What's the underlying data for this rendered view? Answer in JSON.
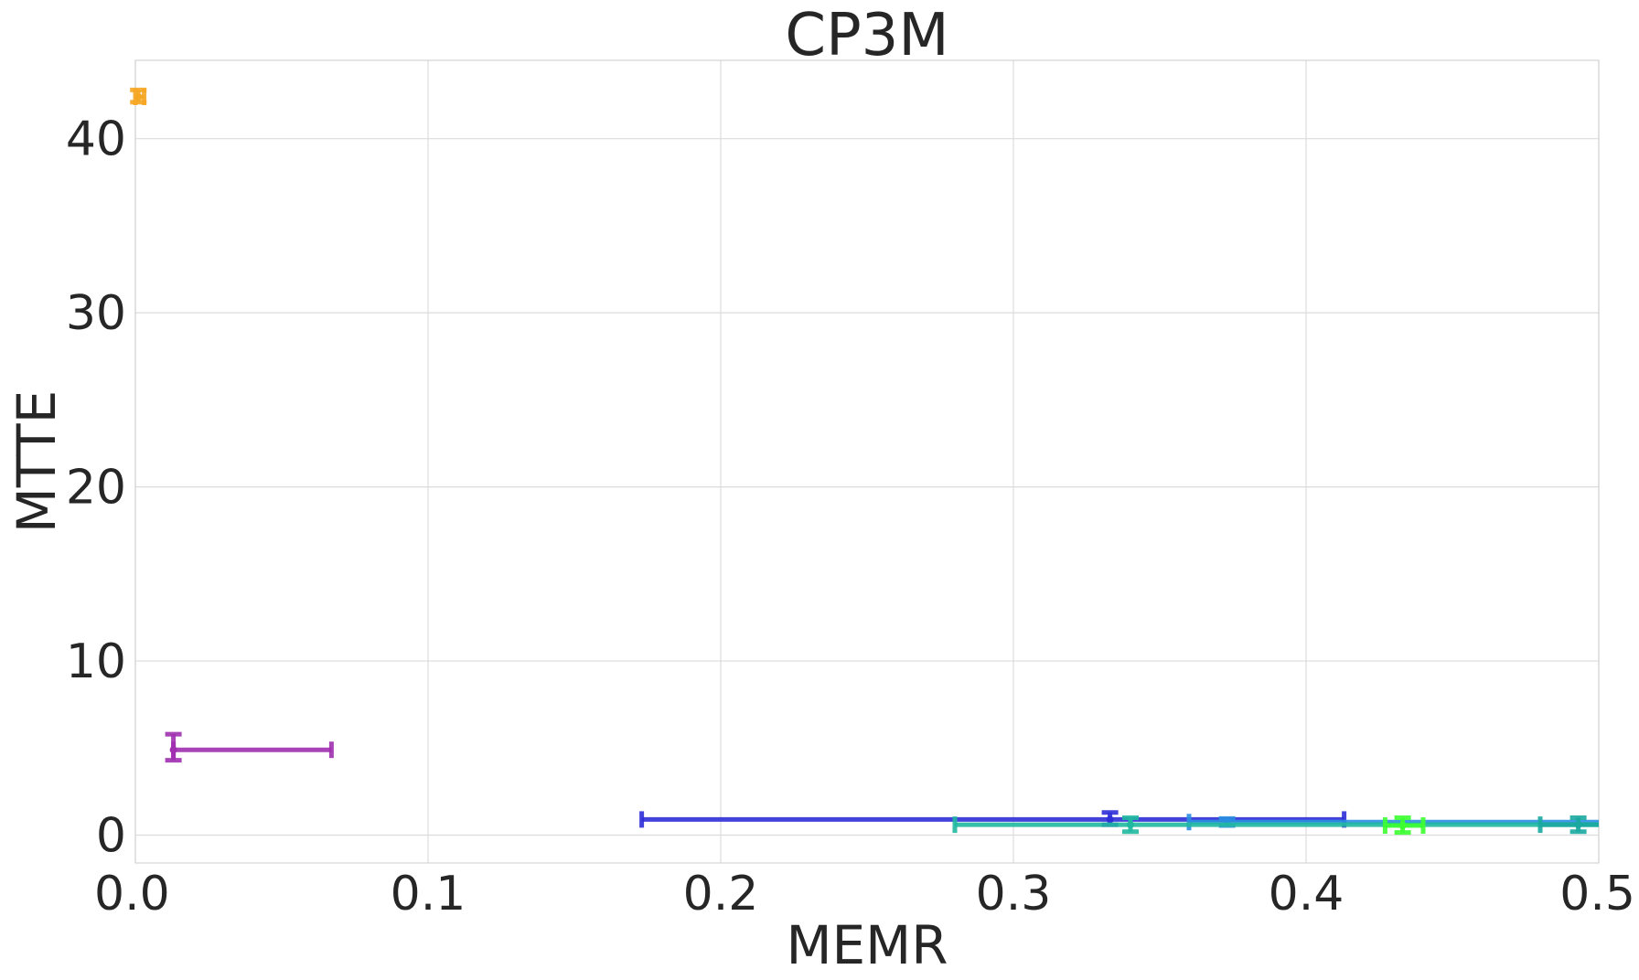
{
  "chart_data": {
    "type": "scatter",
    "title": "CP3M",
    "xlabel": "MEMR",
    "ylabel": "MTTE",
    "xlim": [
      0.0,
      0.5
    ],
    "ylim": [
      -1.6,
      44.5
    ],
    "grid": true,
    "x_ticks": [
      "0.0",
      "0.1",
      "0.2",
      "0.3",
      "0.4",
      "0.5"
    ],
    "y_ticks": [
      "0",
      "10",
      "20",
      "30",
      "40"
    ],
    "series": [
      {
        "color": "#f5a623",
        "x": 0.001,
        "y": 42.4,
        "x_err": [
          0.0,
          0.003
        ],
        "y_err": [
          42.1,
          42.8
        ]
      },
      {
        "color": "#a030b0",
        "x": 0.013,
        "y": 4.9,
        "x_err": [
          0.013,
          0.067
        ],
        "y_err": [
          4.3,
          5.8
        ]
      },
      {
        "color": "#2f2fd8",
        "x": 0.333,
        "y": 0.9,
        "x_err": [
          0.173,
          0.413
        ],
        "y_err": [
          0.6,
          1.3
        ]
      },
      {
        "color": "#2a8ee0",
        "x": 0.373,
        "y": 0.75,
        "x_err": [
          0.36,
          0.5
        ],
        "y_err": [
          0.55,
          0.95
        ]
      },
      {
        "color": "#20b8a0",
        "x": 0.34,
        "y": 0.6,
        "x_err": [
          0.28,
          0.5
        ],
        "y_err": [
          0.2,
          1.0
        ]
      },
      {
        "color": "#3cff30",
        "x": 0.433,
        "y": 0.55,
        "x_err": [
          0.427,
          0.44
        ],
        "y_err": [
          0.15,
          1.0
        ]
      },
      {
        "color": "#1aa8a0",
        "x": 0.493,
        "y": 0.6,
        "x_err": [
          0.48,
          0.5
        ],
        "y_err": [
          0.2,
          1.0
        ]
      }
    ]
  }
}
